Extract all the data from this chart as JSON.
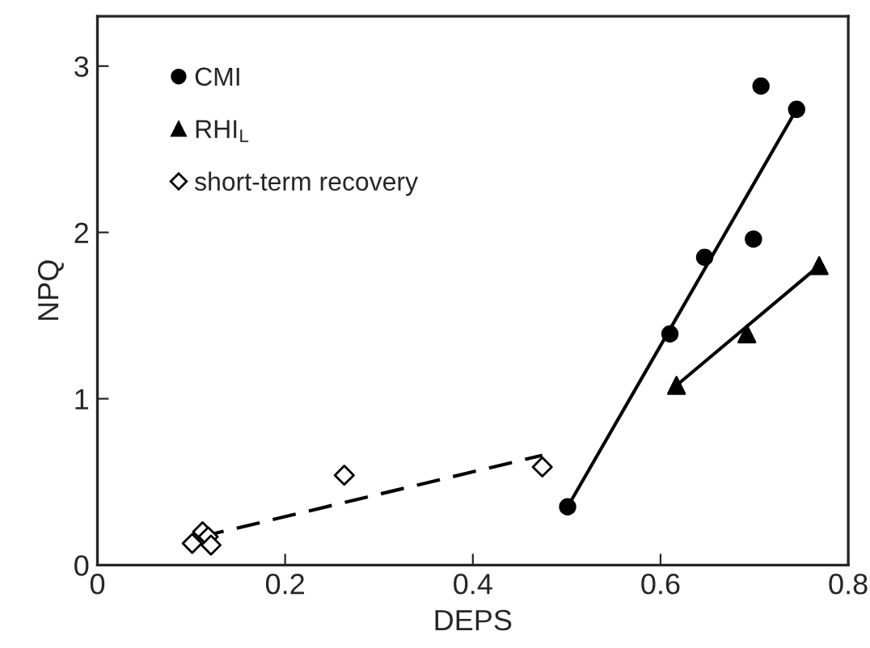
{
  "chart_data": {
    "type": "scatter",
    "xlabel": "DEPS",
    "ylabel": "NPQ",
    "xlim": [
      0,
      0.8
    ],
    "ylim": [
      0,
      3.3
    ],
    "xticks": [
      0,
      0.2,
      0.4,
      0.6,
      0.8
    ],
    "yticks": [
      0,
      1,
      2,
      3
    ],
    "grid": false,
    "legend": "top left",
    "series": [
      {
        "name": "CMI",
        "marker": "circle",
        "color": "#000000",
        "x": [
          0.501,
          0.61,
          0.647,
          0.699,
          0.707,
          0.745
        ],
        "values": [
          0.35,
          1.39,
          1.85,
          1.96,
          2.88,
          2.74
        ]
      },
      {
        "name": "RHI$_{L}$",
        "marker": "triangle",
        "color": "#000000",
        "x": [
          0.617,
          0.692,
          0.769
        ],
        "values": [
          1.08,
          1.39,
          1.8
        ]
      },
      {
        "name": "short-term recovery",
        "marker": "diamond",
        "color": "#000000",
        "x": [
          0.101,
          0.112,
          0.118,
          0.121,
          0.263,
          0.474
        ],
        "values": [
          0.13,
          0.2,
          0.17,
          0.12,
          0.54,
          0.59
        ]
      },
      {
        "type": "line",
        "line_style": "solid",
        "color": "#000000",
        "x": [
          0.501,
          0.745
        ],
        "values": [
          0.35,
          2.74
        ]
      },
      {
        "type": "line",
        "line_style": "solid",
        "color": "#000000",
        "x": [
          0.617,
          0.769
        ],
        "values": [
          1.08,
          1.8
        ]
      },
      {
        "type": "line",
        "line_style": "dashed",
        "color": "#000000",
        "x": [
          0.11,
          0.474
        ],
        "values": [
          0.17,
          0.66
        ]
      }
    ]
  }
}
